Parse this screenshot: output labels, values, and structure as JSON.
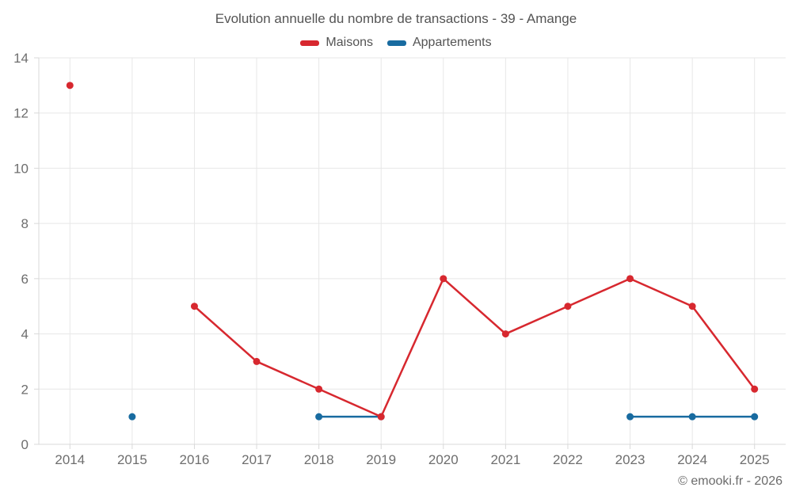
{
  "title": "Evolution annuelle du nombre de transactions - 39 - Amange",
  "footer": "© emooki.fr - 2026",
  "legend": {
    "items": [
      {
        "label": "Maisons",
        "color": "#d7282f"
      },
      {
        "label": "Appartements",
        "color": "#186ba0"
      }
    ]
  },
  "chart_data": {
    "type": "line",
    "title": "Evolution annuelle du nombre de transactions - 39 - Amange",
    "x": [
      "2014",
      "2015",
      "2016",
      "2017",
      "2018",
      "2019",
      "2020",
      "2021",
      "2022",
      "2023",
      "2024",
      "2025"
    ],
    "series": [
      {
        "name": "Maisons",
        "color": "#d7282f",
        "values": [
          13,
          null,
          5,
          3,
          2,
          1,
          6,
          4,
          5,
          6,
          5,
          2
        ]
      },
      {
        "name": "Appartements",
        "color": "#186ba0",
        "values": [
          null,
          1,
          null,
          null,
          1,
          1,
          null,
          null,
          null,
          1,
          1,
          1
        ]
      }
    ],
    "xlabel": "",
    "ylabel": "",
    "ylim": [
      0,
      14
    ],
    "ytick_step": 2,
    "grid": true,
    "legend_position": "top"
  }
}
